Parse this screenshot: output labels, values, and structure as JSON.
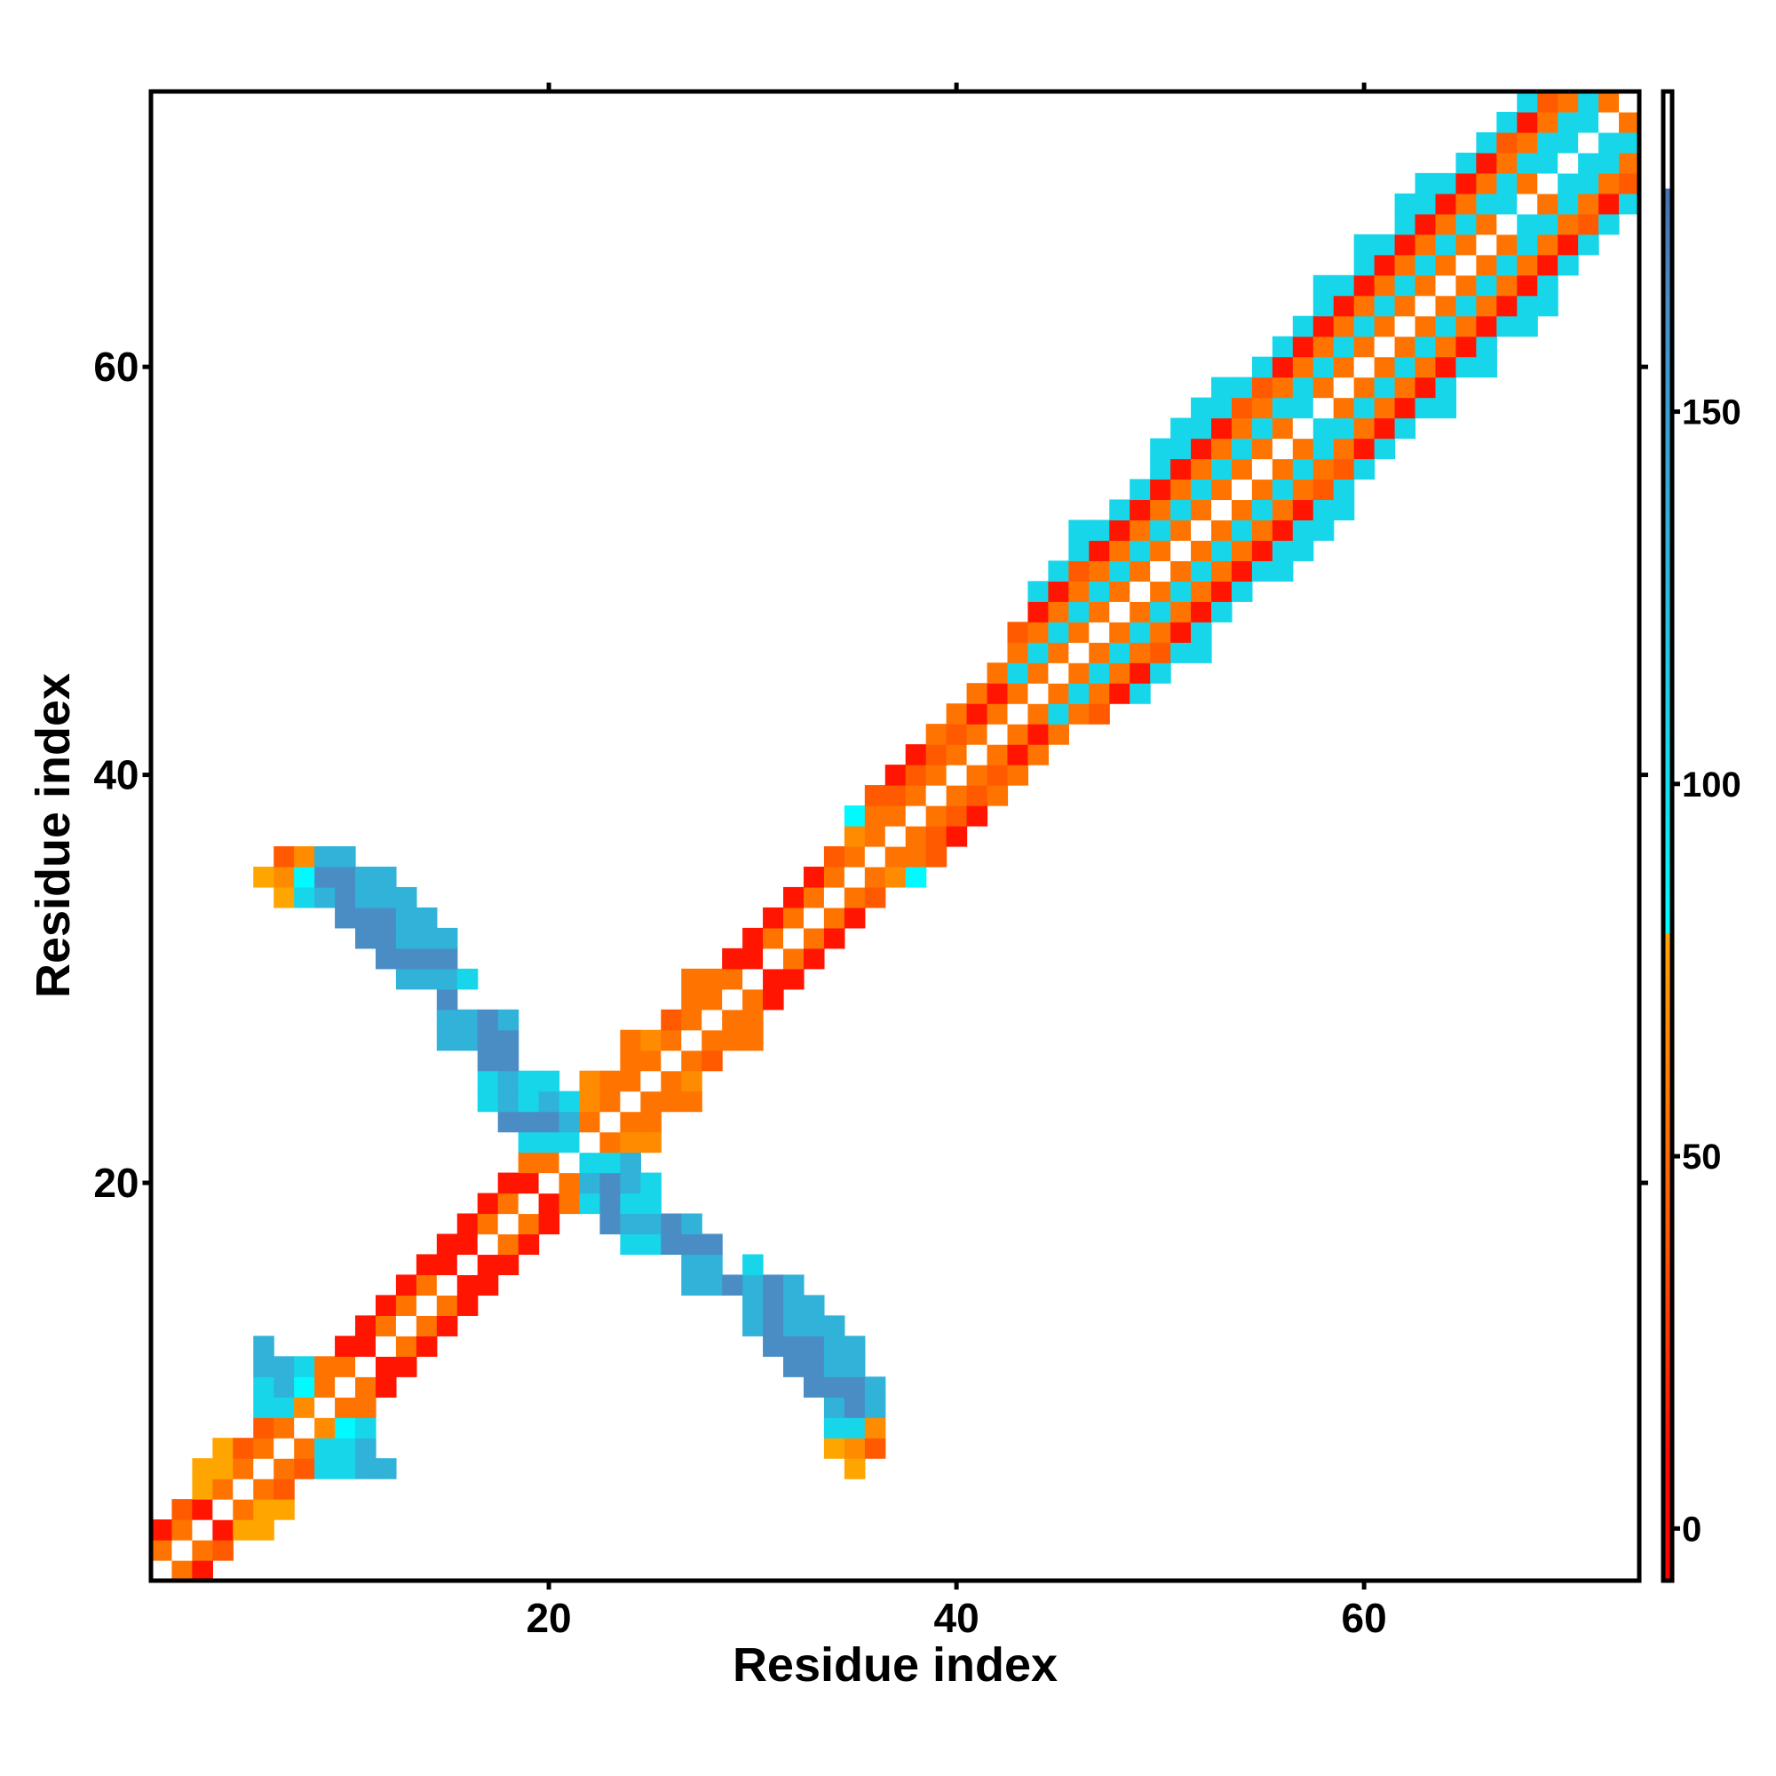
{
  "chart_data": {
    "type": "heatmap",
    "title": "",
    "xlabel": "Residue index",
    "ylabel": "Residue index",
    "xlim": [
      0.5,
      73.5
    ],
    "ylim": [
      0.5,
      73.5
    ],
    "xticks": [
      20,
      40,
      60
    ],
    "yticks": [
      20,
      40,
      60
    ],
    "grid": false,
    "legend": "colorbar-right",
    "colorbar": {
      "range": [
        -7,
        193
      ],
      "ticks": [
        0,
        50,
        100,
        150
      ],
      "stops": [
        {
          "v": -7,
          "c": "#ff0000"
        },
        {
          "v": 10,
          "c": "#ff0a00"
        },
        {
          "v": 25,
          "c": "#ff3300"
        },
        {
          "v": 40,
          "c": "#ff5a00"
        },
        {
          "v": 55,
          "c": "#ff7300"
        },
        {
          "v": 68,
          "c": "#ff8c00"
        },
        {
          "v": 79.9,
          "c": "#ffa500"
        },
        {
          "v": 80,
          "c": "#00ffff"
        },
        {
          "v": 95,
          "c": "#12e4f0"
        },
        {
          "v": 110,
          "c": "#1ed0e6"
        },
        {
          "v": 130,
          "c": "#2fb4da"
        },
        {
          "v": 150,
          "c": "#3a9ed0"
        },
        {
          "v": 165,
          "c": "#4a8cc4"
        },
        {
          "v": 179.9,
          "c": "#4a6fb0"
        },
        {
          "v": 180,
          "c": "#ffffff"
        },
        {
          "v": 193,
          "c": "#ffffff"
        }
      ]
    },
    "categories": {
      "R": {
        "value": 10,
        "color": "#ff1500"
      },
      "N": {
        "value": 35,
        "color": "#ff5a00"
      },
      "O": {
        "value": 50,
        "color": "#ff7300"
      },
      "P": {
        "value": 62,
        "color": "#ff8c00"
      },
      "A": {
        "value": 72,
        "color": "#ffa500"
      },
      "Q": {
        "value": 85,
        "color": "#00faff"
      },
      "C": {
        "value": 100,
        "color": "#18d6ea"
      },
      "L": {
        "value": 135,
        "color": "#30b2d9"
      },
      "B": {
        "value": 162,
        "color": "#4a8dc4"
      },
      "W": {
        "value": 185,
        "color": "#ffffff"
      }
    },
    "rows": [
      {
        "r": 1,
        "s": [
          [
            1,
            "WOR"
          ]
        ]
      },
      {
        "r": 2,
        "s": [
          [
            1,
            "OWON"
          ]
        ]
      },
      {
        "r": 3,
        "s": [
          [
            1,
            "ROWRAA"
          ]
        ]
      },
      {
        "r": 4,
        "s": [
          [
            2,
            "NRWOAA"
          ]
        ]
      },
      {
        "r": 5,
        "s": [
          [
            3,
            "AOWON"
          ]
        ]
      },
      {
        "r": 6,
        "s": [
          [
            3,
            "AAOWONCCLL"
          ],
          [
            35,
            "A"
          ]
        ]
      },
      {
        "r": 7,
        "s": [
          [
            4,
            "ANOWOCCL"
          ],
          [
            34,
            "APN"
          ]
        ]
      },
      {
        "r": 8,
        "s": [
          [
            6,
            "NOWPQC"
          ],
          [
            34,
            "CCP"
          ]
        ]
      },
      {
        "r": 9,
        "s": [
          [
            6,
            "CCPWOO"
          ],
          [
            34,
            "LBL"
          ]
        ]
      },
      {
        "r": 10,
        "s": [
          [
            6,
            "CLQOWOR"
          ],
          [
            33,
            "BBBL"
          ]
        ]
      },
      {
        "r": 11,
        "s": [
          [
            6,
            "LLCOOWRR"
          ],
          [
            32,
            "BBLL"
          ]
        ]
      },
      {
        "r": 12,
        "s": [
          [
            6,
            "L...RRWOR"
          ],
          [
            31,
            "BBBLL"
          ]
        ]
      },
      {
        "r": 13,
        "s": [
          [
            11,
            "ROWOR"
          ],
          [
            30,
            "LBLLL"
          ]
        ]
      },
      {
        "r": 14,
        "s": [
          [
            12,
            "ROWOR"
          ],
          [
            30,
            "LBLL"
          ]
        ]
      },
      {
        "r": 15,
        "s": [
          [
            13,
            "ROWRR"
          ],
          [
            27,
            "LLBLBL"
          ]
        ]
      },
      {
        "r": 16,
        "s": [
          [
            14,
            "RRWRR"
          ],
          [
            27,
            "LL.C"
          ]
        ]
      },
      {
        "r": 17,
        "s": [
          [
            15,
            "RRWOR"
          ],
          [
            24,
            "CCBBB"
          ]
        ]
      },
      {
        "r": 18,
        "s": [
          [
            16,
            "ROWOR"
          ],
          [
            23,
            "BLLBL"
          ]
        ]
      },
      {
        "r": 19,
        "s": [
          [
            17,
            "ROWROCBCC"
          ]
        ]
      },
      {
        "r": 20,
        "s": [
          [
            18,
            "RRWOLBLC"
          ]
        ]
      },
      {
        "r": 21,
        "s": [
          [
            19,
            "OOWCCL"
          ]
        ]
      },
      {
        "r": 22,
        "s": [
          [
            19,
            "CCCWOPP"
          ]
        ]
      },
      {
        "r": 23,
        "s": [
          [
            18,
            "BBBLOWOO"
          ]
        ]
      },
      {
        "r": 24,
        "s": [
          [
            17,
            "CLCLC"
          ],
          [
            22,
            "POWOOO"
          ]
        ]
      },
      {
        "r": 25,
        "s": [
          [
            17,
            "CLCC"
          ],
          [
            22,
            "POOWOP"
          ]
        ]
      },
      {
        "r": 26,
        "s": [
          [
            17,
            "BB"
          ],
          [
            24,
            "OOWON"
          ]
        ]
      },
      {
        "r": 27,
        "s": [
          [
            15,
            "LLBB"
          ],
          [
            24,
            "OPOWOOO"
          ]
        ]
      },
      {
        "r": 28,
        "s": [
          [
            15,
            "LLBL"
          ],
          [
            26,
            "NOWOO"
          ]
        ]
      },
      {
        "r": 29,
        "s": [
          [
            15,
            "B"
          ],
          [
            27,
            "OOWOR"
          ]
        ]
      },
      {
        "r": 30,
        "s": [
          [
            13,
            "LLLC"
          ],
          [
            27,
            "OOOWRR"
          ]
        ]
      },
      {
        "r": 31,
        "s": [
          [
            12,
            "BBBB"
          ],
          [
            29,
            "RRWOR"
          ]
        ]
      },
      {
        "r": 32,
        "s": [
          [
            11,
            "BBLLL"
          ],
          [
            30,
            "ROWOR"
          ]
        ]
      },
      {
        "r": 33,
        "s": [
          [
            10,
            "BBBLL"
          ],
          [
            31,
            "ROWOR"
          ]
        ]
      },
      {
        "r": 34,
        "s": [
          [
            7,
            "ACLBLLL"
          ],
          [
            32,
            "ROWON"
          ]
        ]
      },
      {
        "r": 35,
        "s": [
          [
            6,
            "APQBBLL"
          ],
          [
            33,
            "ROWOPQ"
          ]
        ]
      },
      {
        "r": 36,
        "s": [
          [
            7,
            "NPLL"
          ],
          [
            34,
            "NOWOON"
          ]
        ]
      },
      {
        "r": 37,
        "s": [
          [
            35,
            "POWONR"
          ]
        ]
      },
      {
        "r": 38,
        "s": [
          [
            35,
            "QOOWONR"
          ]
        ]
      },
      {
        "r": 39,
        "s": [
          [
            36,
            "NNOWONO"
          ]
        ]
      },
      {
        "r": 40,
        "s": [
          [
            37,
            "RNOWONO"
          ]
        ]
      },
      {
        "r": 41,
        "s": [
          [
            38,
            "RNOWORO"
          ]
        ]
      },
      {
        "r": 42,
        "s": [
          [
            39,
            "ONOWORO"
          ]
        ]
      },
      {
        "r": 43,
        "s": [
          [
            40,
            "OROWOCON"
          ]
        ]
      },
      {
        "r": 44,
        "s": [
          [
            41,
            "OROWOCORC"
          ]
        ]
      },
      {
        "r": 45,
        "s": [
          [
            42,
            "OCOWOCORC"
          ]
        ]
      },
      {
        "r": 46,
        "s": [
          [
            43,
            "OCOWOCONCC"
          ]
        ]
      },
      {
        "r": 47,
        "s": [
          [
            43,
            "NOCOWOCORC"
          ]
        ]
      },
      {
        "r": 48,
        "s": [
          [
            44,
            "ROCOWOCORC"
          ]
        ]
      },
      {
        "r": 49,
        "s": [
          [
            44,
            "CROCOWOCORC"
          ]
        ]
      },
      {
        "r": 50,
        "s": [
          [
            45,
            "CNOCOWOCORCC"
          ]
        ]
      },
      {
        "r": 51,
        "s": [
          [
            46,
            "CROCOWOCORCC"
          ]
        ]
      },
      {
        "r": 52,
        "s": [
          [
            46,
            "CCROCOWOCORCC"
          ]
        ]
      },
      {
        "r": 53,
        "s": [
          [
            48,
            "CROCOWOCORCC"
          ]
        ]
      },
      {
        "r": 54,
        "s": [
          [
            49,
            "CROCOWOCONC"
          ]
        ]
      },
      {
        "r": 55,
        "s": [
          [
            50,
            "CROCOWOCONC"
          ]
        ]
      },
      {
        "r": 56,
        "s": [
          [
            50,
            "CCROCOWOCORC"
          ]
        ]
      },
      {
        "r": 57,
        "s": [
          [
            51,
            "CCROCOWCCORC"
          ]
        ]
      },
      {
        "r": 58,
        "s": [
          [
            52,
            "CCNOCCWOCORCC"
          ]
        ]
      },
      {
        "r": 59,
        "s": [
          [
            53,
            "CCNOCOWOCORC"
          ]
        ]
      },
      {
        "r": 60,
        "s": [
          [
            55,
            "CROCOWOCORCC"
          ]
        ]
      },
      {
        "r": 61,
        "s": [
          [
            56,
            "CROCOWOCORC"
          ]
        ]
      },
      {
        "r": 62,
        "s": [
          [
            57,
            "CROCOWOCORCC"
          ]
        ]
      },
      {
        "r": 63,
        "s": [
          [
            58,
            "CROCOWOCORCC"
          ]
        ]
      },
      {
        "r": 64,
        "s": [
          [
            58,
            "CCROCOWOCORC"
          ]
        ]
      },
      {
        "r": 65,
        "s": [
          [
            60,
            "CROCOWOCORC"
          ]
        ]
      },
      {
        "r": 66,
        "s": [
          [
            60,
            "CCROCOWOCORC"
          ]
        ]
      },
      {
        "r": 67,
        "s": [
          [
            62,
            "CROCOWCCONC"
          ]
        ]
      },
      {
        "r": 68,
        "s": [
          [
            62,
            "CCROCCWOCORC"
          ]
        ]
      },
      {
        "r": 69,
        "s": [
          [
            63,
            "CCROCOWCCON"
          ]
        ]
      },
      {
        "r": 70,
        "s": [
          [
            65,
            "CROCCWCCO"
          ]
        ]
      },
      {
        "r": 71,
        "s": [
          [
            66,
            "CNOCCWCC"
          ]
        ]
      },
      {
        "r": 72,
        "s": [
          [
            67,
            "CROCCWO"
          ]
        ]
      },
      {
        "r": 73,
        "s": [
          [
            68,
            "CNOCOW"
          ]
        ]
      }
    ]
  }
}
